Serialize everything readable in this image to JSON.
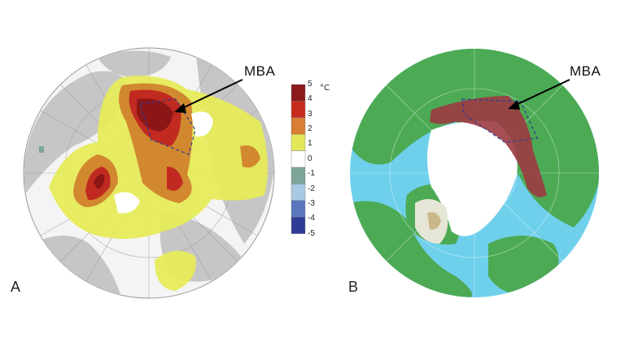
{
  "panels": [
    {
      "letter": "A",
      "label": "MBA"
    },
    {
      "letter": "B",
      "label": "MBA"
    }
  ],
  "legend": {
    "unit": "°C",
    "ticks": [
      "5",
      "4",
      "3",
      "2",
      "1",
      "0",
      "-1",
      "-2",
      "-3",
      "-4",
      "-5"
    ],
    "colors": [
      "#8b1a1a",
      "#c62a1e",
      "#d87f35",
      "#e3e85a",
      "#ffffff",
      "#7da59a",
      "#a8c9e4",
      "#5a77bd",
      "#2e3c96"
    ]
  },
  "colors": {
    "land_grey": "#c6c6c6",
    "ocean_light": "#f4f4f4",
    "anomaly_warm": "#e6eb5a",
    "anomaly_orange": "#d2882f",
    "anomaly_red": "#c12a20",
    "anomaly_darkred": "#8c1616",
    "topo_ocean": "#6fd0ec",
    "topo_land": "#4caa55",
    "ice": "#ffffff",
    "mba_region": "#9c3a43"
  }
}
